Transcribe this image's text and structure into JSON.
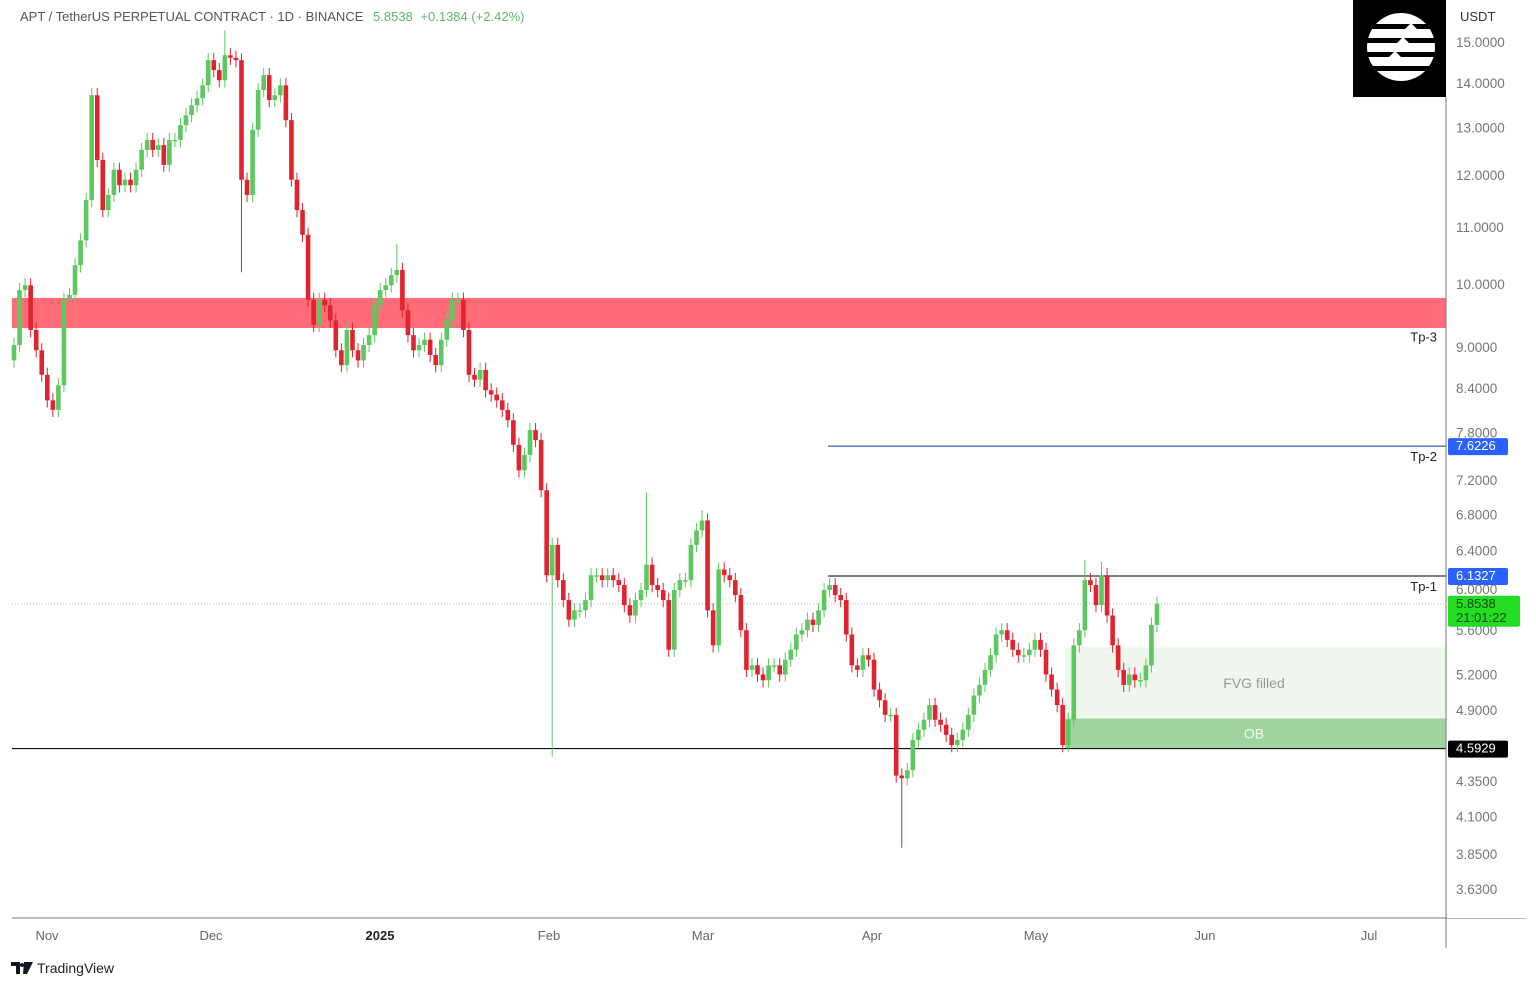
{
  "header": {
    "symbol": "APT / TetherUS PERPETUAL CONTRACT · 1D · BINANCE",
    "last_price": "5.8538",
    "change": "+0.1384 (+2.42%)"
  },
  "branding": {
    "logo": "Aptos logo",
    "footer": "TradingView"
  },
  "chart_data": {
    "type": "candlestick",
    "title": "APT / TetherUS PERPETUAL CONTRACT · 1D · BINANCE",
    "currency_label": "USDT",
    "y_scale": "log",
    "ylim": [
      3.5,
      15.5
    ],
    "grid": false,
    "y_ticks": [
      "15.0000",
      "14.0000",
      "13.0000",
      "12.0000",
      "11.0000",
      "10.0000",
      "9.0000",
      "8.4000",
      "7.8000",
      "7.2000",
      "6.8000",
      "6.4000",
      "6.0000",
      "5.6000",
      "5.2000",
      "4.9000",
      "4.3500",
      "4.1000",
      "3.8500",
      "3.6300"
    ],
    "x_ticks": [
      {
        "label": "Nov",
        "bold": false
      },
      {
        "label": "Dec",
        "bold": false
      },
      {
        "label": "2025",
        "bold": true
      },
      {
        "label": "Feb",
        "bold": false
      },
      {
        "label": "Mar",
        "bold": false
      },
      {
        "label": "Apr",
        "bold": false
      },
      {
        "label": "May",
        "bold": false
      },
      {
        "label": "Jun",
        "bold": false
      },
      {
        "label": "Jul",
        "bold": false
      }
    ],
    "first_open": 8.8,
    "closes": [
      9.03,
      9.9,
      9.98,
      9.26,
      8.95,
      8.59,
      8.23,
      8.1,
      8.44,
      9.74,
      9.82,
      10.32,
      10.76,
      11.51,
      13.72,
      12.31,
      11.32,
      11.61,
      12.11,
      11.8,
      11.91,
      11.8,
      12.11,
      12.52,
      12.73,
      12.52,
      12.62,
      12.21,
      12.73,
      12.73,
      13.05,
      13.27,
      13.49,
      13.65,
      13.95,
      14.55,
      14.31,
      14.07,
      14.67,
      14.61,
      14.55,
      11.91,
      11.61,
      12.95,
      13.84,
      14.19,
      13.61,
      13.72,
      13.95,
      13.16,
      11.91,
      11.32,
      10.86,
      9.74,
      9.34,
      9.74,
      9.65,
      9.41,
      8.95,
      8.73,
      9.26,
      8.95,
      8.8,
      9.03,
      9.18,
      9.65,
      9.9,
      9.98,
      10.15,
      10.24,
      9.57,
      9.18,
      8.95,
      9.03,
      9.11,
      8.88,
      8.73,
      9.11,
      9.41,
      9.74,
      9.74,
      9.26,
      8.59,
      8.52,
      8.66,
      8.37,
      8.31,
      8.23,
      8.1,
      7.96,
      7.64,
      7.32,
      7.51,
      7.83,
      7.7,
      7.08,
      6.14,
      6.46,
      6.09,
      5.89,
      5.7,
      5.79,
      5.79,
      5.89,
      6.14,
      6.14,
      6.09,
      6.14,
      6.09,
      6.04,
      5.84,
      5.74,
      5.89,
      5.99,
      6.25,
      6.04,
      5.99,
      5.89,
      5.42,
      5.99,
      6.09,
      6.09,
      6.46,
      6.62,
      6.73,
      5.79,
      5.46,
      6.2,
      6.14,
      6.09,
      5.94,
      5.6,
      5.24,
      5.28,
      5.2,
      5.15,
      5.28,
      5.28,
      5.2,
      5.33,
      5.42,
      5.56,
      5.6,
      5.7,
      5.65,
      5.79,
      5.99,
      6.04,
      5.94,
      5.89,
      5.56,
      5.28,
      5.24,
      5.37,
      5.33,
      5.07,
      4.98,
      4.86,
      4.86,
      4.39,
      4.37,
      4.43,
      4.66,
      4.74,
      4.82,
      4.94,
      4.82,
      4.78,
      4.7,
      4.62,
      4.66,
      4.74,
      4.86,
      5.02,
      5.11,
      5.24,
      5.37,
      5.56,
      5.6,
      5.51,
      5.42,
      5.37,
      5.37,
      5.42,
      5.51,
      5.42,
      5.2,
      5.07,
      4.94,
      4.62,
      4.82,
      5.46,
      5.6,
      6.09,
      6.04,
      5.84,
      6.14,
      5.74,
      5.46,
      5.24,
      5.11,
      5.2,
      5.15,
      5.15,
      5.28,
      5.65,
      5.8538
    ],
    "notable_wicks": [
      {
        "index": 38,
        "high": 15.3
      },
      {
        "index": 41,
        "low": 10.2
      },
      {
        "index": 69,
        "high": 10.7
      },
      {
        "index": 97,
        "low": 4.53
      },
      {
        "index": 114,
        "high": 7.05
      },
      {
        "index": 124,
        "high": 6.85
      },
      {
        "index": 160,
        "low": 3.89
      },
      {
        "index": 193,
        "high": 6.3
      },
      {
        "index": 196,
        "high": 6.28
      }
    ],
    "colors": {
      "up": "#5cc85f",
      "down": "#e0232f",
      "resistance_zone": "#ff6b77",
      "fvg": "#eef6ee",
      "ob": "#9fd49f",
      "tp_line": "#3b5ba9",
      "badge_blue": "#2962ff",
      "badge_green": "#22dd22"
    },
    "zones": [
      {
        "name": "resistance",
        "from": 9.29,
        "to": 9.77,
        "label": ""
      },
      {
        "name": "fvg",
        "from": 4.83,
        "to": 5.44,
        "label": "FVG filled"
      },
      {
        "name": "ob",
        "from": 4.5929,
        "to": 4.83,
        "label": "OB"
      }
    ],
    "levels": [
      {
        "name": "Tp-3",
        "label": "Tp-3",
        "price": 9.05,
        "line": false
      },
      {
        "name": "Tp-2",
        "label": "Tp-2",
        "price": 7.6226,
        "line": true,
        "badge": "7.6226"
      },
      {
        "name": "Tp-1",
        "label": "Tp-1",
        "price": 6.1327,
        "line": true,
        "badge": "6.1327"
      },
      {
        "name": "support",
        "label": "",
        "price": 4.5929,
        "line": true,
        "badge": "4.5929"
      }
    ],
    "current": {
      "price": "5.8538",
      "countdown": "21:01:22"
    }
  }
}
